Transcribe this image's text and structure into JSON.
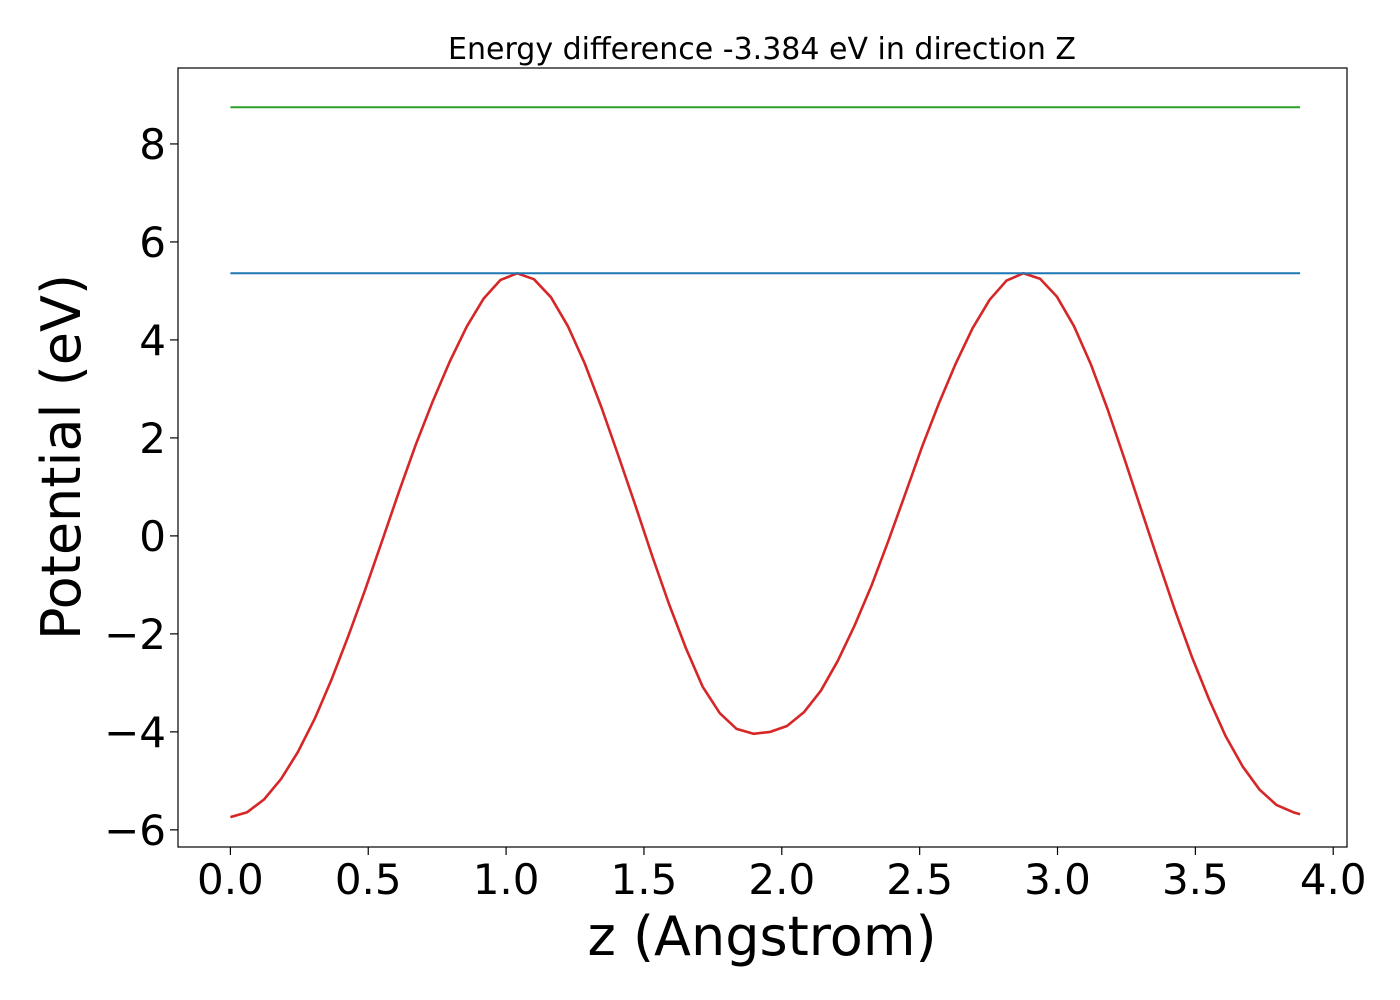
{
  "chart_data": {
    "type": "line",
    "title": "Energy difference -3.384 eV in direction Z",
    "xlabel": "z (Angstrom)",
    "ylabel": "Potential (eV)",
    "xlim": [
      -0.19,
      4.05
    ],
    "ylim": [
      -6.35,
      9.55
    ],
    "xticks": [
      0.0,
      0.5,
      1.0,
      1.5,
      2.0,
      2.5,
      3.0,
      3.5,
      4.0
    ],
    "xtick_labels": [
      "0.0",
      "0.5",
      "1.0",
      "1.5",
      "2.0",
      "2.5",
      "3.0",
      "3.5",
      "4.0"
    ],
    "yticks": [
      -6,
      -4,
      -2,
      0,
      2,
      4,
      6,
      8
    ],
    "ytick_labels": [
      "−6",
      "−4",
      "−2",
      "0",
      "2",
      "4",
      "6",
      "8"
    ],
    "grid": false,
    "legend": "none",
    "series": [
      {
        "color": "#d62728",
        "x": [
          0.0,
          0.061,
          0.122,
          0.184,
          0.245,
          0.306,
          0.367,
          0.428,
          0.49,
          0.551,
          0.612,
          0.673,
          0.734,
          0.796,
          0.857,
          0.918,
          0.979,
          1.04,
          1.101,
          1.163,
          1.224,
          1.285,
          1.346,
          1.407,
          1.469,
          1.53,
          1.591,
          1.652,
          1.713,
          1.775,
          1.836,
          1.897,
          1.958,
          2.019,
          2.08,
          2.142,
          2.203,
          2.264,
          2.325,
          2.386,
          2.448,
          2.509,
          2.57,
          2.631,
          2.692,
          2.754,
          2.815,
          2.876,
          2.937,
          2.998,
          3.06,
          3.121,
          3.182,
          3.243,
          3.304,
          3.366,
          3.427,
          3.488,
          3.549,
          3.61,
          3.672,
          3.733,
          3.794,
          3.855,
          3.88
        ],
        "y": [
          -5.74,
          -5.64,
          -5.38,
          -4.96,
          -4.41,
          -3.73,
          -2.93,
          -2.04,
          -1.08,
          -0.09,
          0.91,
          1.87,
          2.75,
          3.56,
          4.27,
          4.84,
          5.22,
          5.36,
          5.24,
          4.87,
          4.28,
          3.52,
          2.62,
          1.64,
          0.62,
          -0.41,
          -1.39,
          -2.29,
          -3.08,
          -3.62,
          -3.94,
          -4.04,
          -4.0,
          -3.88,
          -3.6,
          -3.16,
          -2.55,
          -1.83,
          -1.02,
          -0.11,
          0.86,
          1.82,
          2.71,
          3.52,
          4.24,
          4.82,
          5.21,
          5.36,
          5.25,
          4.88,
          4.28,
          3.5,
          2.58,
          1.57,
          0.53,
          -0.52,
          -1.53,
          -2.48,
          -3.33,
          -4.09,
          -4.71,
          -5.18,
          -5.49,
          -5.64,
          -5.68
        ]
      },
      {
        "color": "#1f77b4",
        "x": [
          0.0,
          3.88
        ],
        "y": [
          5.36,
          5.36
        ]
      },
      {
        "color": "#2ca02c",
        "x": [
          0.0,
          3.88
        ],
        "y": [
          8.75,
          8.75
        ]
      }
    ]
  }
}
